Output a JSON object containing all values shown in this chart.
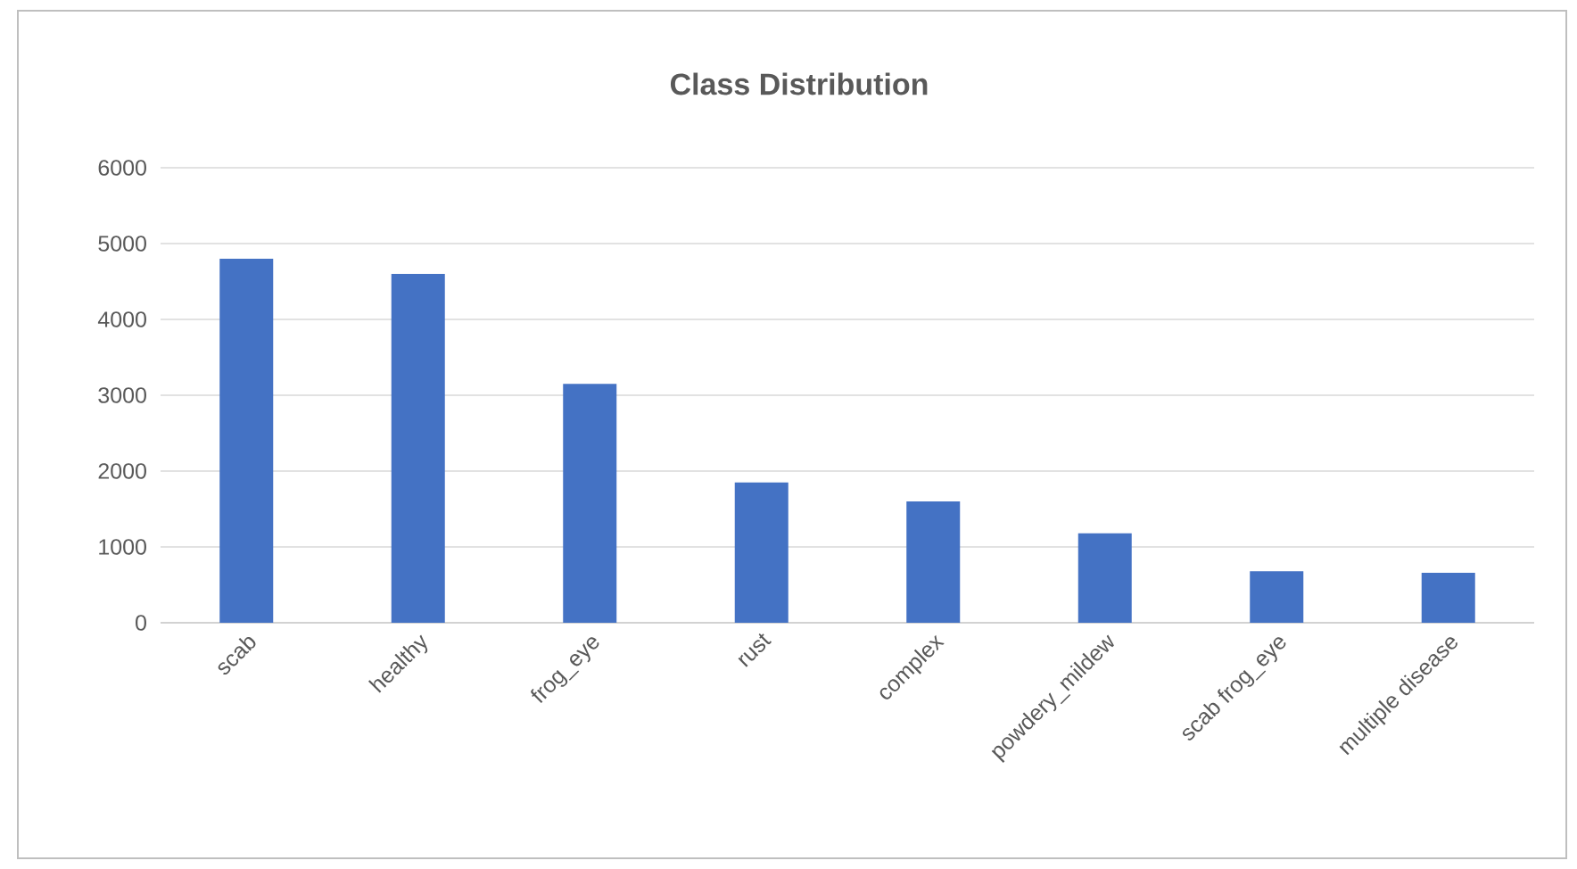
{
  "chart_data": {
    "type": "bar",
    "title": "Class Distribution",
    "categories": [
      "scab",
      "healthy",
      "frog_eye",
      "rust",
      "complex",
      "powdery_mildew",
      "scab frog_eye",
      "multiple disease"
    ],
    "values": [
      4800,
      4600,
      3150,
      1850,
      1600,
      1180,
      680,
      660
    ],
    "color": "#4472c4",
    "ylim": [
      0,
      6000
    ],
    "yticks": [
      0,
      1000,
      2000,
      3000,
      4000,
      5000,
      6000
    ],
    "grid": "y"
  }
}
